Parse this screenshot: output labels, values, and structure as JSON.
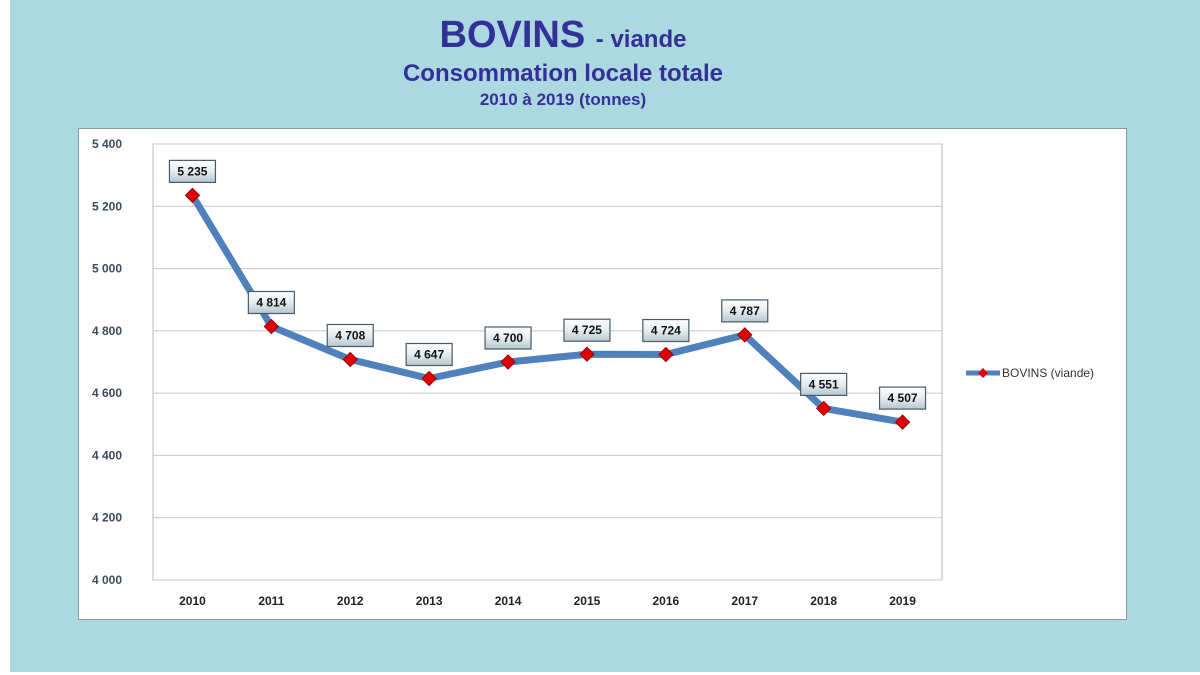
{
  "title": {
    "main": "BOVINS",
    "suffix": "- viande",
    "subtitle": "Consommation locale totale",
    "period": "2010 à 2019 (tonnes)"
  },
  "colors": {
    "background": "#acd8df",
    "title": "#34309a",
    "line": "#4f81bd",
    "marker": "#e00000"
  },
  "chart_data": {
    "type": "line",
    "title": "BOVINS - viande / Consommation locale totale / 2010 à 2019 (tonnes)",
    "categories": [
      "2010",
      "2011",
      "2012",
      "2013",
      "2014",
      "2015",
      "2016",
      "2017",
      "2018",
      "2019"
    ],
    "series": [
      {
        "name": "BOVINS (viande)",
        "values": [
          5235,
          4814,
          4708,
          4647,
          4700,
          4725,
          4724,
          4787,
          4551,
          4507
        ]
      }
    ],
    "data_labels": [
      "5 235",
      "4 814",
      "4 708",
      "4 647",
      "4 700",
      "4 725",
      "4 724",
      "4 787",
      "4 551",
      "4 507"
    ],
    "yticks": [
      "4 000",
      "4 200",
      "4 400",
      "4 600",
      "4 800",
      "5 000",
      "5 200",
      "5 400"
    ],
    "ylim": [
      4000,
      5400
    ],
    "grid": true,
    "legend": "right"
  }
}
